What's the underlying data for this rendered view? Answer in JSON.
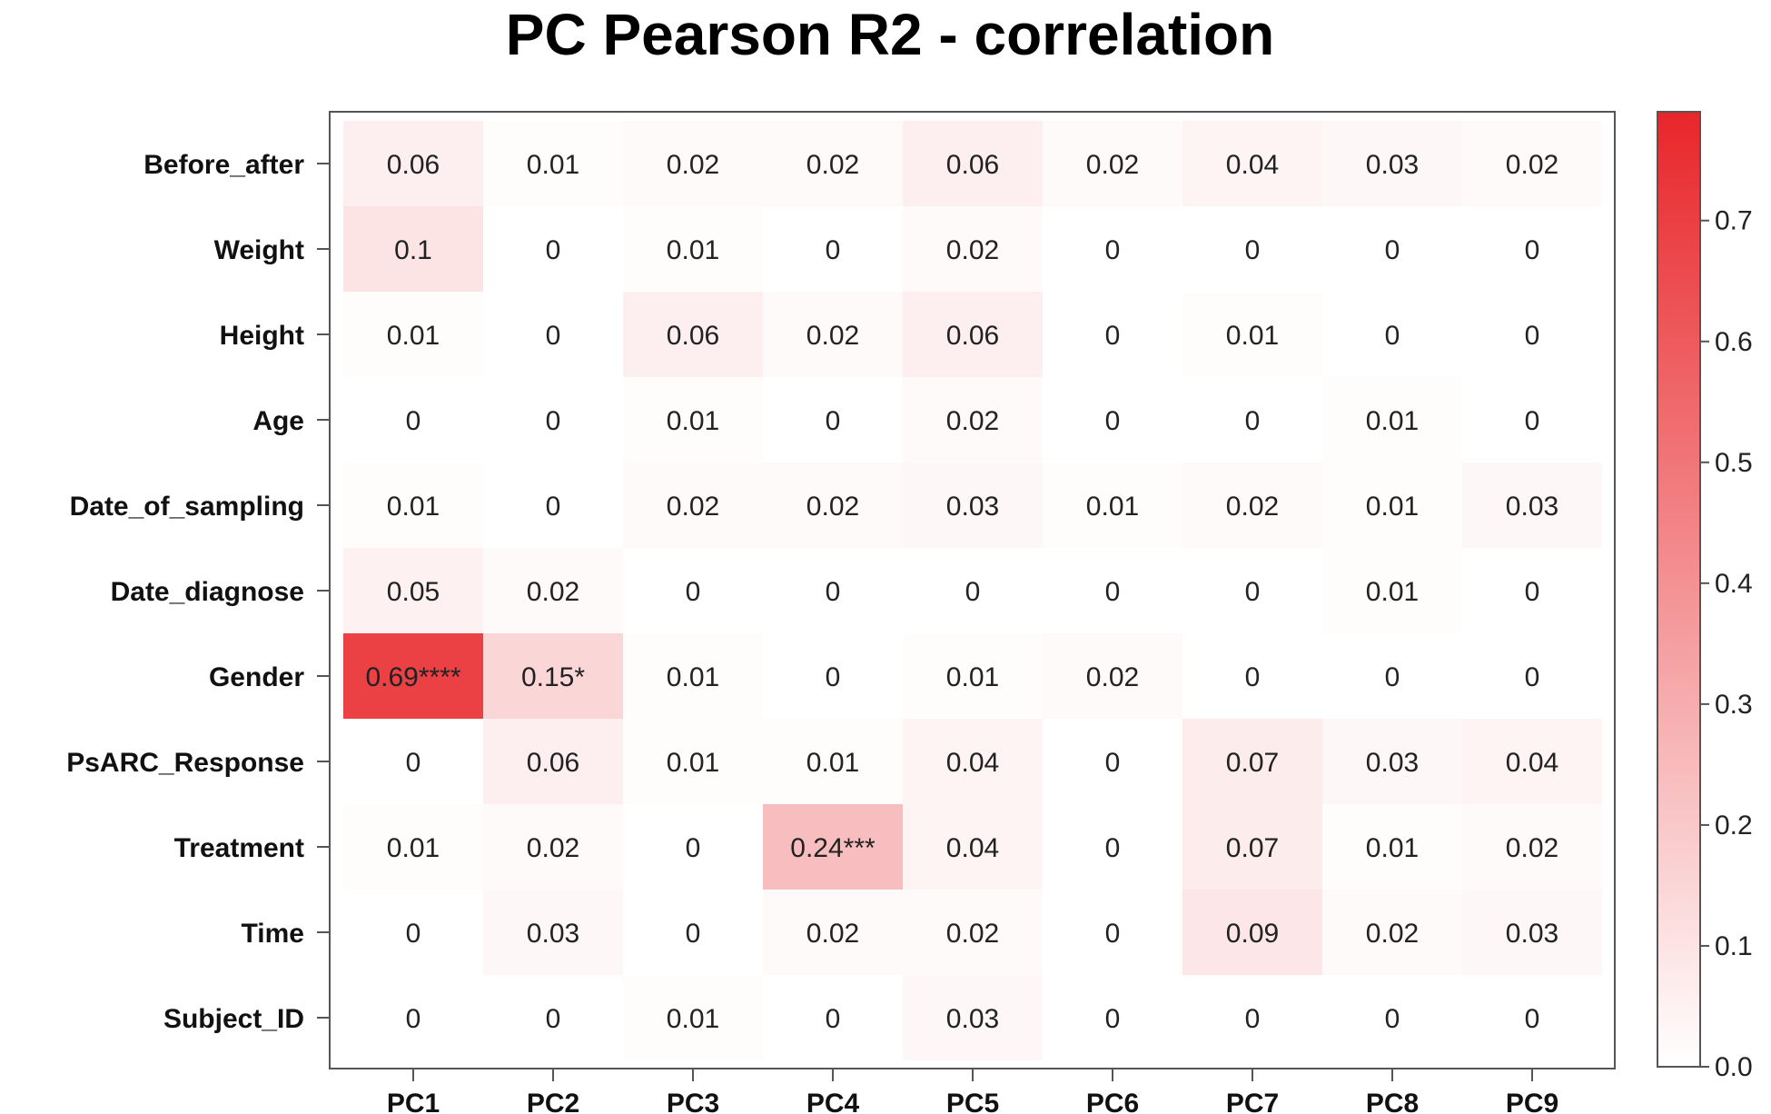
{
  "chart_data": {
    "type": "heatmap",
    "title": "PC Pearson R2 - correlation",
    "rows": [
      "Before_after",
      "Weight",
      "Height",
      "Age",
      "Date_of_sampling",
      "Date_diagnose",
      "Gender",
      "PsARC_Response",
      "Treatment",
      "Time",
      "Subject_ID"
    ],
    "columns": [
      "PC1",
      "PC2",
      "PC3",
      "PC4",
      "PC5",
      "PC6",
      "PC7",
      "PC8",
      "PC9"
    ],
    "values": [
      [
        0.06,
        0.01,
        0.02,
        0.02,
        0.06,
        0.02,
        0.04,
        0.03,
        0.02
      ],
      [
        0.1,
        0,
        0.01,
        0,
        0.02,
        0,
        0,
        0,
        0
      ],
      [
        0.01,
        0,
        0.06,
        0.02,
        0.06,
        0,
        0.01,
        0,
        0
      ],
      [
        0,
        0,
        0.01,
        0,
        0.02,
        0,
        0,
        0.01,
        0
      ],
      [
        0.01,
        0,
        0.02,
        0.02,
        0.03,
        0.01,
        0.02,
        0.01,
        0.03
      ],
      [
        0.05,
        0.02,
        0,
        0,
        0,
        0,
        0,
        0.01,
        0
      ],
      [
        0.69,
        0.15,
        0.01,
        0,
        0.01,
        0.02,
        0,
        0,
        0
      ],
      [
        0,
        0.06,
        0.01,
        0.01,
        0.04,
        0,
        0.07,
        0.03,
        0.04
      ],
      [
        0.01,
        0.02,
        0,
        0.24,
        0.04,
        0,
        0.07,
        0.01,
        0.02
      ],
      [
        0,
        0.03,
        0,
        0.02,
        0.02,
        0,
        0.09,
        0.02,
        0.03
      ],
      [
        0,
        0,
        0.01,
        0,
        0.03,
        0,
        0,
        0,
        0
      ]
    ],
    "labels": [
      [
        "0.06",
        "0.01",
        "0.02",
        "0.02",
        "0.06",
        "0.02",
        "0.04",
        "0.03",
        "0.02"
      ],
      [
        "0.1",
        "0",
        "0.01",
        "0",
        "0.02",
        "0",
        "0",
        "0",
        "0"
      ],
      [
        "0.01",
        "0",
        "0.06",
        "0.02",
        "0.06",
        "0",
        "0.01",
        "0",
        "0"
      ],
      [
        "0",
        "0",
        "0.01",
        "0",
        "0.02",
        "0",
        "0",
        "0.01",
        "0"
      ],
      [
        "0.01",
        "0",
        "0.02",
        "0.02",
        "0.03",
        "0.01",
        "0.02",
        "0.01",
        "0.03"
      ],
      [
        "0.05",
        "0.02",
        "0",
        "0",
        "0",
        "0",
        "0",
        "0.01",
        "0"
      ],
      [
        "0.69****",
        "0.15*",
        "0.01",
        "0",
        "0.01",
        "0.02",
        "0",
        "0",
        "0"
      ],
      [
        "0",
        "0.06",
        "0.01",
        "0.01",
        "0.04",
        "0",
        "0.07",
        "0.03",
        "0.04"
      ],
      [
        "0.01",
        "0.02",
        "0",
        "0.24***",
        "0.04",
        "0",
        "0.07",
        "0.01",
        "0.02"
      ],
      [
        "0",
        "0.03",
        "0",
        "0.02",
        "0.02",
        "0",
        "0.09",
        "0.02",
        "0.03"
      ],
      [
        "0",
        "0",
        "0.01",
        "0",
        "0.03",
        "0",
        "0",
        "0",
        "0"
      ]
    ],
    "colorscale": {
      "min": 0,
      "max": 0.79,
      "low_color": "#ffffff",
      "high_color": "#e8262a",
      "ticks": [
        0.0,
        0.1,
        0.2,
        0.3,
        0.4,
        0.5,
        0.6,
        0.7
      ],
      "tick_labels": [
        "0.0",
        "0.1",
        "0.2",
        "0.3",
        "0.4",
        "0.5",
        "0.6",
        "0.7"
      ],
      "placement": "right"
    }
  }
}
